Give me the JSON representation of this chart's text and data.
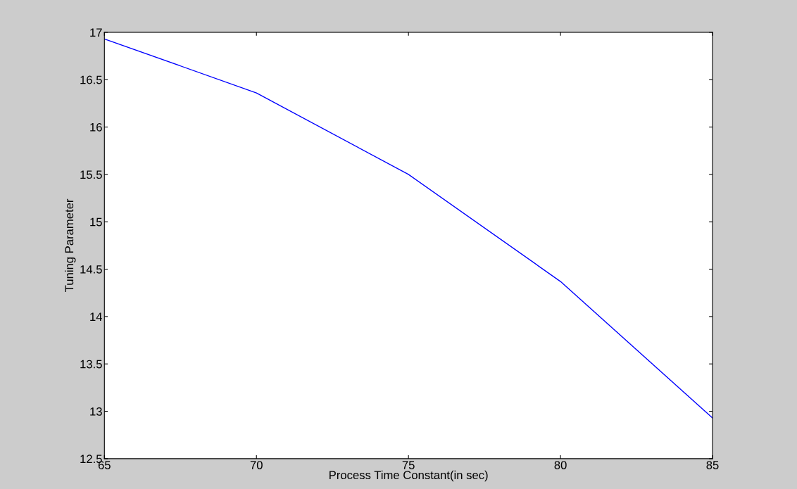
{
  "chart_data": {
    "type": "line",
    "xlabel": "Process Time Constant(in sec)",
    "ylabel": "Tuning Parameter",
    "x": [
      65,
      70,
      75,
      80,
      85
    ],
    "series": [
      {
        "color": "#0000ff",
        "values": [
          16.93,
          16.36,
          15.5,
          14.37,
          12.93
        ]
      }
    ],
    "xlim": [
      65,
      85
    ],
    "xticks": [
      65,
      70,
      75,
      80,
      85
    ],
    "ylim": [
      12.5,
      17
    ],
    "yticks": [
      12.5,
      13,
      13.5,
      14,
      14.5,
      15,
      15.5,
      16,
      16.5,
      17
    ],
    "grid": false,
    "legend": false,
    "marker": "none",
    "line_style": "solid"
  }
}
